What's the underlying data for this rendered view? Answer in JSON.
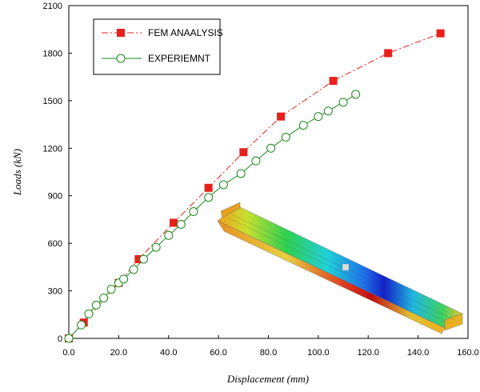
{
  "chart_data": {
    "type": "line",
    "title": "",
    "xlabel": "Displacement (mm)",
    "ylabel": "Loads (kN)",
    "xlim": [
      0,
      160
    ],
    "ylim": [
      0,
      2100
    ],
    "xticks": [
      0,
      20,
      40,
      60,
      80,
      100,
      120,
      140,
      160
    ],
    "xtick_labels": [
      "0.0",
      "20.0",
      "40.0",
      "60.0",
      "80.0",
      "100.0",
      "120.0",
      "140.0",
      "160.0"
    ],
    "yticks": [
      0,
      300,
      600,
      900,
      1200,
      1500,
      1800,
      2100
    ],
    "ytick_labels": [
      "0",
      "300",
      "600",
      "900",
      "1200",
      "1500",
      "1800",
      "2100"
    ],
    "grid": false,
    "legend_position": "top-left",
    "series": [
      {
        "name": "FEM ANAALYSIS",
        "color": "#e8201c",
        "line_style": "dash-dot",
        "marker": "filled-square",
        "x": [
          0,
          6,
          20,
          28,
          42,
          56,
          70,
          85,
          106,
          128,
          149
        ],
        "y": [
          0,
          100,
          350,
          500,
          730,
          950,
          1175,
          1400,
          1625,
          1800,
          1925
        ]
      },
      {
        "name": "EXPERIEMNT",
        "color": "#1a8a1a",
        "line_style": "solid",
        "marker": "open-circle",
        "x": [
          0,
          5,
          8,
          11,
          14,
          17,
          20,
          22,
          26,
          30,
          35,
          40,
          45,
          50,
          56,
          62,
          69,
          75,
          81,
          87,
          94,
          100,
          104,
          110,
          115
        ],
        "y": [
          0,
          85,
          155,
          210,
          255,
          310,
          350,
          375,
          435,
          500,
          575,
          650,
          720,
          800,
          890,
          970,
          1040,
          1120,
          1200,
          1270,
          1345,
          1400,
          1435,
          1490,
          1540
        ]
      }
    ]
  },
  "inset": {
    "description_icon": "fem-beam-contour-icon"
  }
}
